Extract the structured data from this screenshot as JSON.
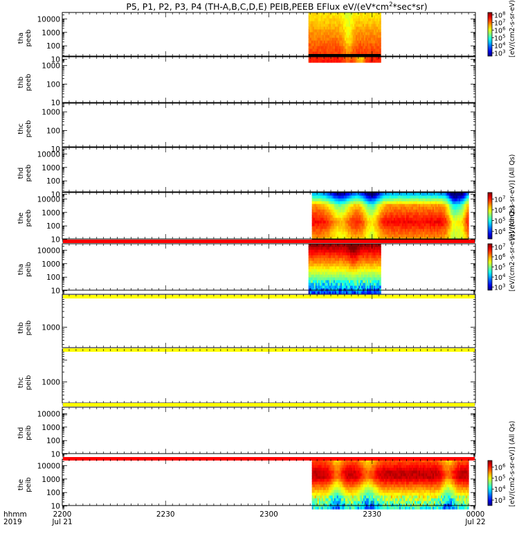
{
  "chart_data": {
    "type": "heatmap",
    "title": "P5, P1, P2, P3, P4 (TH-A,B,C,D,E) PEIB,PEEB EFlux eV/(eV*cm",
    "title_sup": "2",
    "title_tail": "*sec*sr)",
    "x_label_row1": "hhmm",
    "x_label_row2": "2019",
    "x_ticks": [
      {
        "label": "2200",
        "date": "Jul 21",
        "value": 0
      },
      {
        "label": "2230",
        "date": "",
        "value": 30
      },
      {
        "label": "2300",
        "date": "",
        "value": 60
      },
      {
        "label": "2330",
        "date": "",
        "value": 90
      },
      {
        "label": "0000",
        "date": "Jul 22",
        "value": 120
      }
    ],
    "x_range_minutes": [
      0,
      120
    ],
    "y_scale": "log",
    "colorbars": [
      {
        "panel": 0,
        "ticks": [
          "10",
          "10",
          "10",
          "10",
          "10",
          "10"
        ],
        "exps": [
          "8",
          "7",
          "6",
          "5",
          "4",
          "3"
        ],
        "exp_values": [
          8,
          7,
          6,
          5,
          4,
          3
        ],
        "range_exp": [
          2.6,
          8.3
        ],
        "label": "[eV/(cm2-s-sr-eV)] (All"
      },
      {
        "panel": 4,
        "ticks": [
          "10",
          "10",
          "10",
          "10"
        ],
        "exps": [
          "7",
          "6",
          "5",
          "4"
        ],
        "exp_values": [
          7,
          6,
          5,
          4
        ],
        "range_exp": [
          3.3,
          7.6
        ],
        "label": "[eV/(cm2-s-sr-eV)] (All Qs)"
      },
      {
        "panel": 5,
        "ticks": [
          "10",
          "10",
          "10",
          "10",
          "10"
        ],
        "exps": [
          "7",
          "6",
          "5",
          "4",
          "3"
        ],
        "exp_values": [
          7,
          6,
          5,
          4,
          3
        ],
        "range_exp": [
          2.7,
          7.3
        ],
        "label": "[eV/(cm2-s-sr-eV)] (All Qs)"
      },
      {
        "panel": 9,
        "ticks": [
          "10",
          "10",
          "10",
          "10"
        ],
        "exps": [
          "6",
          "5",
          "4",
          "3"
        ],
        "exp_values": [
          6,
          5,
          4,
          3
        ],
        "range_exp": [
          2.5,
          6.6
        ],
        "label": "[eV/(cm2-s-sr-eV)] (All Qs)"
      }
    ],
    "panels": [
      {
        "probe": "tha",
        "product": "peeb",
        "yticks": [
          "10000",
          "1000",
          "100",
          "10"
        ],
        "ytick_values": [
          10000,
          1000,
          100,
          10
        ],
        "y_range": [
          6,
          30000
        ],
        "spectrogram": {
          "x_range": [
            71.5,
            92.5
          ],
          "pattern": "peeb_a"
        },
        "flag": {
          "type": "bar",
          "color": "#000000",
          "segments": [
            [
              71.5,
              92.5
            ]
          ]
        }
      },
      {
        "probe": "thb",
        "product": "peeb",
        "yticks": [
          "1000",
          "100",
          "10"
        ],
        "ytick_values": [
          1000,
          100,
          10
        ],
        "y_range": [
          6,
          3000
        ],
        "spectrogram": null,
        "flag": null
      },
      {
        "probe": "thc",
        "product": "peeb",
        "yticks": [
          "1000",
          "100",
          "10"
        ],
        "ytick_values": [
          1000,
          100,
          10
        ],
        "y_range": [
          6,
          3000
        ],
        "spectrogram": null,
        "flag": null
      },
      {
        "probe": "thd",
        "product": "peeb",
        "yticks": [
          "10000",
          "1000",
          "100",
          "10"
        ],
        "ytick_values": [
          10000,
          1000,
          100,
          10
        ],
        "y_range": [
          6,
          30000
        ],
        "spectrogram": null,
        "flag": null
      },
      {
        "probe": "the",
        "product": "peeb",
        "yticks": [
          "10000",
          "1000",
          "100",
          "10"
        ],
        "ytick_values": [
          10000,
          1000,
          100,
          10
        ],
        "y_range": [
          6,
          30000
        ],
        "spectrogram": {
          "x_range": [
            72.5,
            118
          ],
          "pattern": "peeb_e"
        },
        "flag": {
          "type": "bar",
          "color": "#000000",
          "segments": [
            [
              72.5,
              118
            ]
          ]
        }
      },
      {
        "probe": "tha",
        "product": "peib",
        "yticks": [
          "10000",
          "1000",
          "100",
          "10"
        ],
        "ytick_values": [
          10000,
          1000,
          100,
          10
        ],
        "y_range": [
          6,
          30000
        ],
        "spectrogram": {
          "x_range": [
            71.5,
            92.5
          ],
          "pattern": "peib_a"
        },
        "flag": {
          "type": "band",
          "color": "#ff0000"
        }
      },
      {
        "probe": "thb",
        "product": "peib",
        "yticks": [
          "1000"
        ],
        "ytick_values": [
          1000
        ],
        "y_range": [
          100,
          10000
        ],
        "spectrogram": null,
        "flag": {
          "type": "band",
          "color": "#ffff00"
        }
      },
      {
        "probe": "thc",
        "product": "peib",
        "yticks": [
          "1000"
        ],
        "ytick_values": [
          1000
        ],
        "y_range": [
          100,
          10000
        ],
        "spectrogram": null,
        "flag": {
          "type": "band",
          "color": "#ffff00"
        }
      },
      {
        "probe": "thd",
        "product": "peib",
        "yticks": [
          "10000",
          "1000",
          "100",
          "10"
        ],
        "ytick_values": [
          10000,
          1000,
          100,
          10
        ],
        "y_range": [
          6,
          30000
        ],
        "spectrogram": null,
        "flag": {
          "type": "band",
          "color": "#ffff00"
        }
      },
      {
        "probe": "the",
        "product": "peib",
        "yticks": [
          "10000",
          "1000",
          "100",
          "10"
        ],
        "ytick_values": [
          10000,
          1000,
          100,
          10
        ],
        "y_range": [
          6,
          30000
        ],
        "spectrogram": {
          "x_range": [
            72.5,
            118
          ],
          "pattern": "peib_e"
        },
        "flag": {
          "type": "band",
          "color": "#ff0000"
        }
      }
    ]
  }
}
